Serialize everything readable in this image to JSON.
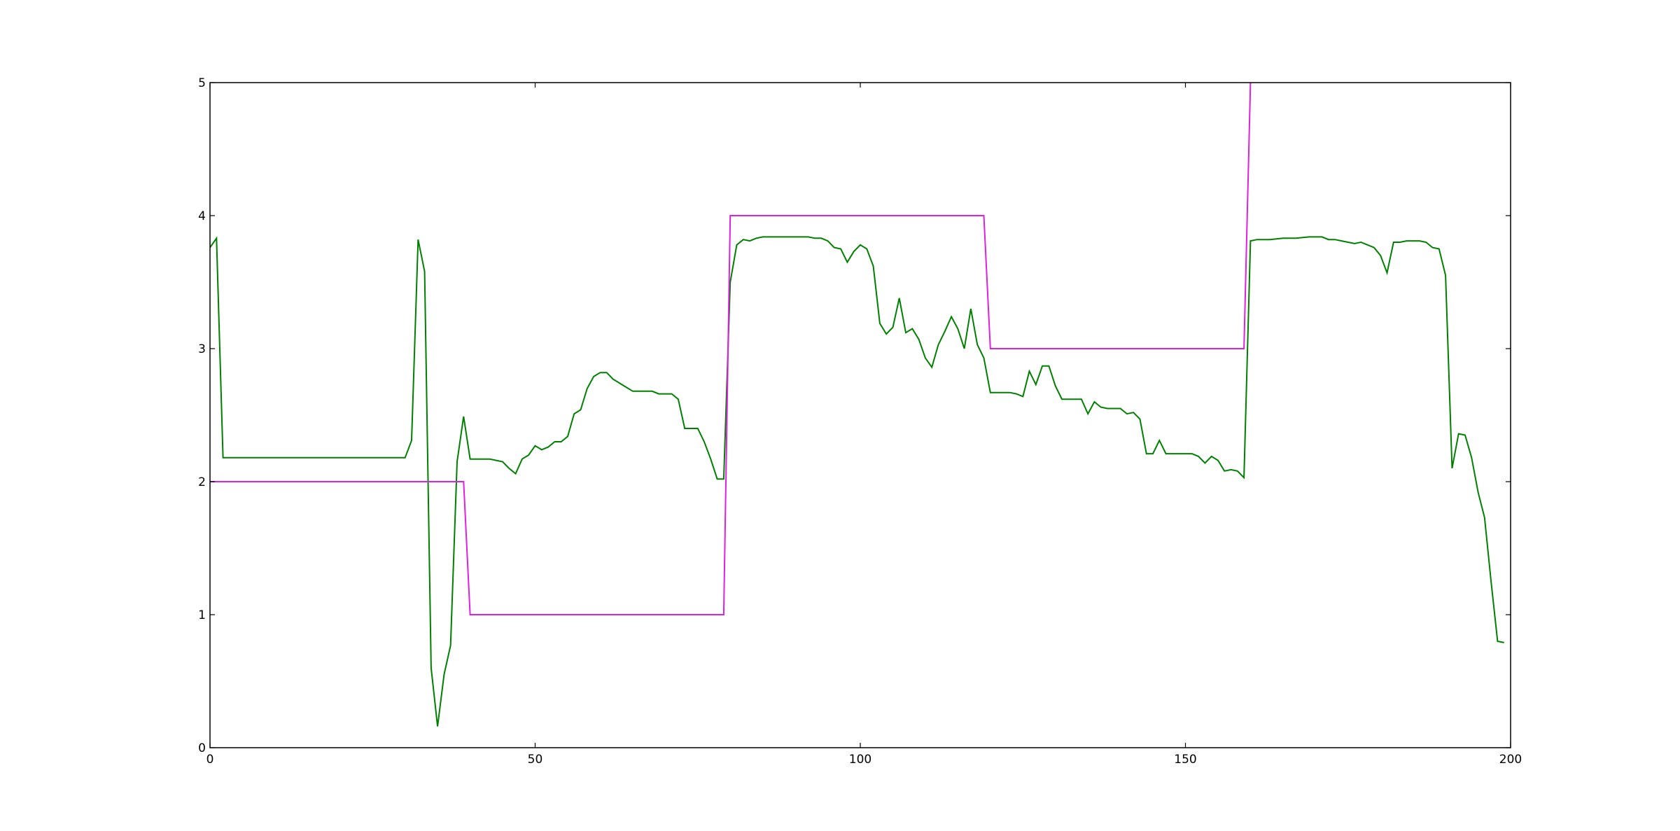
{
  "chart_data": {
    "type": "line",
    "title": "",
    "xlabel": "",
    "ylabel": "",
    "xlim": [
      0,
      200
    ],
    "ylim": [
      0,
      5
    ],
    "x_ticks": [
      0,
      50,
      100,
      150,
      200
    ],
    "y_ticks": [
      0,
      1,
      2,
      3,
      4,
      5
    ],
    "x_tick_labels": [
      "0",
      "50",
      "100",
      "150",
      "200"
    ],
    "y_tick_labels": [
      "0",
      "1",
      "2",
      "3",
      "4",
      "5"
    ],
    "grid": false,
    "legend": "none",
    "series": [
      {
        "color": "#008000",
        "points": [
          [
            0,
            3.76
          ],
          [
            1,
            3.83
          ],
          [
            2,
            2.18
          ],
          [
            3,
            2.18
          ],
          [
            10,
            2.18
          ],
          [
            20,
            2.18
          ],
          [
            30,
            2.18
          ],
          [
            31,
            2.31
          ],
          [
            32,
            3.82
          ],
          [
            33,
            3.58
          ],
          [
            34,
            0.6
          ],
          [
            35,
            0.16
          ],
          [
            36,
            0.55
          ],
          [
            37,
            0.77
          ],
          [
            38,
            2.15
          ],
          [
            39,
            2.49
          ],
          [
            40,
            2.17
          ],
          [
            41,
            2.17
          ],
          [
            42,
            2.17
          ],
          [
            43,
            2.17
          ],
          [
            44,
            2.16
          ],
          [
            45,
            2.15
          ],
          [
            46,
            2.1
          ],
          [
            47,
            2.06
          ],
          [
            48,
            2.17
          ],
          [
            49,
            2.2
          ],
          [
            50,
            2.27
          ],
          [
            51,
            2.24
          ],
          [
            52,
            2.26
          ],
          [
            53,
            2.3
          ],
          [
            54,
            2.3
          ],
          [
            55,
            2.34
          ],
          [
            56,
            2.51
          ],
          [
            57,
            2.54
          ],
          [
            58,
            2.7
          ],
          [
            59,
            2.79
          ],
          [
            60,
            2.82
          ],
          [
            61,
            2.82
          ],
          [
            62,
            2.77
          ],
          [
            63,
            2.74
          ],
          [
            64,
            2.71
          ],
          [
            65,
            2.68
          ],
          [
            66,
            2.68
          ],
          [
            67,
            2.68
          ],
          [
            68,
            2.68
          ],
          [
            69,
            2.66
          ],
          [
            70,
            2.66
          ],
          [
            71,
            2.66
          ],
          [
            72,
            2.62
          ],
          [
            73,
            2.4
          ],
          [
            74,
            2.4
          ],
          [
            75,
            2.4
          ],
          [
            76,
            2.3
          ],
          [
            77,
            2.17
          ],
          [
            78,
            2.02
          ],
          [
            79,
            2.02
          ],
          [
            80,
            3.5
          ],
          [
            81,
            3.78
          ],
          [
            82,
            3.82
          ],
          [
            83,
            3.81
          ],
          [
            84,
            3.83
          ],
          [
            85,
            3.84
          ],
          [
            88,
            3.84
          ],
          [
            92,
            3.84
          ],
          [
            93,
            3.83
          ],
          [
            94,
            3.83
          ],
          [
            95,
            3.81
          ],
          [
            96,
            3.76
          ],
          [
            97,
            3.75
          ],
          [
            98,
            3.65
          ],
          [
            99,
            3.73
          ],
          [
            100,
            3.78
          ],
          [
            101,
            3.75
          ],
          [
            102,
            3.62
          ],
          [
            103,
            3.19
          ],
          [
            104,
            3.11
          ],
          [
            105,
            3.16
          ],
          [
            106,
            3.38
          ],
          [
            107,
            3.12
          ],
          [
            108,
            3.15
          ],
          [
            109,
            3.07
          ],
          [
            110,
            2.93
          ],
          [
            111,
            2.86
          ],
          [
            112,
            3.03
          ],
          [
            113,
            3.13
          ],
          [
            114,
            3.24
          ],
          [
            115,
            3.15
          ],
          [
            116,
            3.0
          ],
          [
            117,
            3.3
          ],
          [
            118,
            3.03
          ],
          [
            119,
            2.93
          ],
          [
            120,
            2.67
          ],
          [
            121,
            2.67
          ],
          [
            123,
            2.67
          ],
          [
            124,
            2.66
          ],
          [
            125,
            2.64
          ],
          [
            126,
            2.83
          ],
          [
            127,
            2.73
          ],
          [
            128,
            2.87
          ],
          [
            129,
            2.87
          ],
          [
            130,
            2.72
          ],
          [
            131,
            2.62
          ],
          [
            132,
            2.62
          ],
          [
            133,
            2.62
          ],
          [
            134,
            2.62
          ],
          [
            135,
            2.51
          ],
          [
            136,
            2.6
          ],
          [
            137,
            2.56
          ],
          [
            138,
            2.55
          ],
          [
            139,
            2.55
          ],
          [
            140,
            2.55
          ],
          [
            141,
            2.51
          ],
          [
            142,
            2.52
          ],
          [
            143,
            2.47
          ],
          [
            144,
            2.21
          ],
          [
            145,
            2.21
          ],
          [
            146,
            2.31
          ],
          [
            147,
            2.21
          ],
          [
            148,
            2.21
          ],
          [
            149,
            2.21
          ],
          [
            150,
            2.21
          ],
          [
            151,
            2.21
          ],
          [
            152,
            2.19
          ],
          [
            153,
            2.14
          ],
          [
            154,
            2.19
          ],
          [
            155,
            2.16
          ],
          [
            156,
            2.08
          ],
          [
            157,
            2.09
          ],
          [
            158,
            2.08
          ],
          [
            159,
            2.03
          ],
          [
            160,
            3.81
          ],
          [
            161,
            3.82
          ],
          [
            162,
            3.82
          ],
          [
            163,
            3.82
          ],
          [
            165,
            3.83
          ],
          [
            167,
            3.83
          ],
          [
            169,
            3.84
          ],
          [
            170,
            3.84
          ],
          [
            171,
            3.84
          ],
          [
            172,
            3.82
          ],
          [
            173,
            3.82
          ],
          [
            174,
            3.81
          ],
          [
            175,
            3.8
          ],
          [
            176,
            3.79
          ],
          [
            177,
            3.8
          ],
          [
            178,
            3.78
          ],
          [
            179,
            3.76
          ],
          [
            180,
            3.7
          ],
          [
            181,
            3.57
          ],
          [
            182,
            3.8
          ],
          [
            183,
            3.8
          ],
          [
            184,
            3.81
          ],
          [
            185,
            3.81
          ],
          [
            186,
            3.81
          ],
          [
            187,
            3.8
          ],
          [
            188,
            3.76
          ],
          [
            189,
            3.75
          ],
          [
            190,
            3.55
          ],
          [
            191,
            2.1
          ],
          [
            192,
            2.36
          ],
          [
            193,
            2.35
          ],
          [
            194,
            2.18
          ],
          [
            195,
            1.92
          ],
          [
            196,
            1.73
          ],
          [
            197,
            1.25
          ],
          [
            198,
            0.8
          ],
          [
            199,
            0.79
          ]
        ]
      },
      {
        "color": "#e020e0",
        "points": [
          [
            0,
            2
          ],
          [
            39,
            2
          ],
          [
            40,
            1
          ],
          [
            79,
            1
          ],
          [
            80,
            4
          ],
          [
            119,
            4
          ],
          [
            120,
            3
          ],
          [
            159,
            3
          ],
          [
            160,
            5
          ]
        ]
      }
    ]
  }
}
